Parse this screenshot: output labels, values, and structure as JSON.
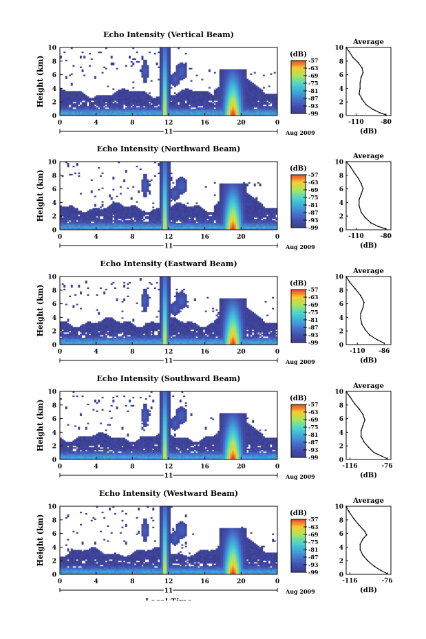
{
  "chart_data": [
    {
      "type": "heatmap",
      "title": "Echo Intensity (Vertical Beam)",
      "ylabel": "Height (km)",
      "ylim": [
        0,
        10
      ],
      "xlim": [
        0,
        24
      ],
      "xticks": [
        "0",
        "4",
        "8",
        "12",
        "16",
        "20",
        "0"
      ],
      "day_label": "11",
      "date_label": "Aug 2009",
      "colorbar": {
        "label": "(dB)",
        "ticks": [
          "-57",
          "-63",
          "-69",
          "-75",
          "-81",
          "-87",
          "-93",
          "-99"
        ]
      },
      "profile": {
        "title": "Average",
        "xlabel": "(dB)",
        "xlim": [
          -120,
          -75
        ],
        "xticks": [
          "-110",
          "-80"
        ],
        "points": [
          [
            -120,
            10
          ],
          [
            -117,
            9.4
          ],
          [
            -113,
            8.5
          ],
          [
            -108,
            7.8
          ],
          [
            -104,
            7.0
          ],
          [
            -103,
            6.3
          ],
          [
            -105,
            5.6
          ],
          [
            -106,
            4.8
          ],
          [
            -106,
            4.0
          ],
          [
            -107,
            3.2
          ],
          [
            -104,
            2.4
          ],
          [
            -100,
            1.6
          ],
          [
            -93,
            0.9
          ],
          [
            -86,
            0.4
          ],
          [
            -80,
            0.1
          ]
        ]
      }
    },
    {
      "type": "heatmap",
      "title": "Echo Intensity (Northward Beam)",
      "ylabel": "Height (km)",
      "ylim": [
        0,
        10
      ],
      "xlim": [
        0,
        24
      ],
      "xticks": [
        "0",
        "4",
        "8",
        "12",
        "16",
        "20",
        "0"
      ],
      "day_label": "11",
      "date_label": "Aug 2009",
      "colorbar": {
        "label": "(dB)",
        "ticks": [
          "-57",
          "-63",
          "-69",
          "-75",
          "-81",
          "-87",
          "-93",
          "-99"
        ]
      },
      "profile": {
        "title": "Average",
        "xlabel": "(dB)",
        "xlim": [
          -120,
          -75
        ],
        "xticks": [
          "-110",
          "-80"
        ],
        "points": [
          [
            -120,
            10
          ],
          [
            -116,
            9.3
          ],
          [
            -112,
            8.4
          ],
          [
            -108,
            7.6
          ],
          [
            -105,
            6.8
          ],
          [
            -103,
            6.0
          ],
          [
            -105,
            5.2
          ],
          [
            -107,
            4.4
          ],
          [
            -107,
            3.5
          ],
          [
            -105,
            2.6
          ],
          [
            -101,
            1.8
          ],
          [
            -95,
            1.0
          ],
          [
            -88,
            0.5
          ],
          [
            -80,
            0.1
          ]
        ]
      }
    },
    {
      "type": "heatmap",
      "title": "Echo Intensity (Eastward Beam)",
      "ylabel": "Height (km)",
      "ylim": [
        0,
        10
      ],
      "xlim": [
        0,
        24
      ],
      "xticks": [
        "0",
        "4",
        "8",
        "12",
        "16",
        "20",
        "0"
      ],
      "day_label": "11",
      "date_label": "Aug 2009",
      "colorbar": {
        "label": "(dB)",
        "ticks": [
          "-57",
          "-63",
          "-69",
          "-75",
          "-81",
          "-87",
          "-93",
          "-99"
        ]
      },
      "profile": {
        "title": "Average",
        "xlabel": "(dB)",
        "xlim": [
          -120,
          -80
        ],
        "xticks": [
          "-110",
          "-86"
        ],
        "points": [
          [
            -120,
            10
          ],
          [
            -117,
            9.2
          ],
          [
            -112,
            8.2
          ],
          [
            -107,
            7.2
          ],
          [
            -104,
            6.2
          ],
          [
            -105,
            5.4
          ],
          [
            -107,
            4.6
          ],
          [
            -107,
            3.8
          ],
          [
            -106,
            3.0
          ],
          [
            -103,
            2.2
          ],
          [
            -99,
            1.4
          ],
          [
            -92,
            0.7
          ],
          [
            -86,
            0.2
          ]
        ]
      }
    },
    {
      "type": "heatmap",
      "title": "Echo Intensity (Southward Beam)",
      "ylabel": "Height (km)",
      "ylim": [
        0,
        10
      ],
      "xlim": [
        0,
        24
      ],
      "xticks": [
        "0",
        "4",
        "8",
        "12",
        "16",
        "20",
        "0"
      ],
      "day_label": "11",
      "date_label": "Aug 2009",
      "colorbar": {
        "label": "(dB)",
        "ticks": [
          "-57",
          "-63",
          "-69",
          "-75",
          "-81",
          "-87",
          "-93",
          "-99"
        ]
      },
      "profile": {
        "title": "Average",
        "xlabel": "(dB)",
        "xlim": [
          -120,
          -72
        ],
        "xticks": [
          "-116",
          "-76"
        ],
        "points": [
          [
            -120,
            10
          ],
          [
            -116,
            9.2
          ],
          [
            -111,
            8.2
          ],
          [
            -106,
            7.4
          ],
          [
            -102,
            6.6
          ],
          [
            -100,
            5.8
          ],
          [
            -102,
            5.0
          ],
          [
            -104,
            4.2
          ],
          [
            -104,
            3.4
          ],
          [
            -101,
            2.6
          ],
          [
            -96,
            1.8
          ],
          [
            -90,
            1.0
          ],
          [
            -82,
            0.5
          ],
          [
            -76,
            0.1
          ]
        ]
      }
    },
    {
      "type": "heatmap",
      "title": "Echo Intensity (Westward Beam)",
      "ylabel": "Height (km)",
      "xlabel": "Local Time",
      "ylim": [
        0,
        10
      ],
      "xlim": [
        0,
        24
      ],
      "xticks": [
        "0",
        "4",
        "8",
        "12",
        "16",
        "20",
        "0"
      ],
      "day_label": "11",
      "date_label": "Aug 2009",
      "colorbar": {
        "label": "(dB)",
        "ticks": [
          "-57",
          "-63",
          "-69",
          "-75",
          "-81",
          "-87",
          "-93",
          "-99"
        ]
      },
      "profile": {
        "title": "Average",
        "xlabel": "(dB)",
        "xlim": [
          -120,
          -72
        ],
        "xticks": [
          "-116",
          "-76"
        ],
        "points": [
          [
            -120,
            10
          ],
          [
            -117,
            9.2
          ],
          [
            -112,
            8.2
          ],
          [
            -106,
            7.2
          ],
          [
            -100,
            6.3
          ],
          [
            -98,
            5.8
          ],
          [
            -102,
            5.2
          ],
          [
            -105,
            4.4
          ],
          [
            -105,
            3.6
          ],
          [
            -102,
            2.8
          ],
          [
            -97,
            2.0
          ],
          [
            -90,
            1.2
          ],
          [
            -83,
            0.6
          ],
          [
            -76,
            0.1
          ]
        ]
      }
    }
  ]
}
